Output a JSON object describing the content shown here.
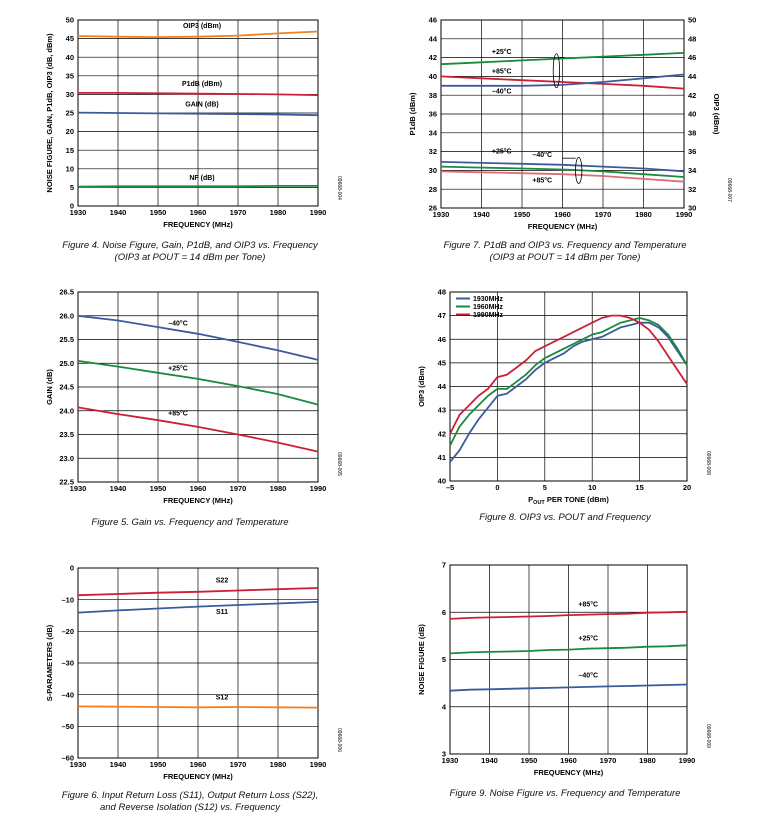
{
  "colors": {
    "blue": "#3a5b9c",
    "green": "#1a8a3c",
    "red": "#cc1f35",
    "orange": "#f47f1f",
    "pink": "#e06a7a"
  },
  "captions": {
    "fig4": [
      "Figure 4. Noise Figure, Gain, P1dB, and OIP3 vs. Frequency",
      "(OIP3 at POUT = 14 dBm per Tone)"
    ],
    "fig7": [
      "Figure 7. P1dB and OIP3 vs. Frequency and Temperature",
      "(OIP3 at POUT = 14 dBm per Tone)"
    ],
    "fig5": [
      "Figure 5. Gain vs. Frequency and Temperature"
    ],
    "fig8": [
      "Figure 8. OIP3 vs. POUT and Frequency"
    ],
    "fig6": [
      "Figure 6. Input Return Loss (S11), Output Return Loss (S22),",
      "and Reverse Isolation (S12) vs. Frequency"
    ],
    "fig9": [
      "Figure 9. Noise Figure vs. Frequency and Temperature"
    ]
  },
  "chart_data": [
    {
      "id": "fig4",
      "type": "line",
      "fig_id": "09668-004",
      "xlabel": "FREQUENCY (MHz)",
      "ylabel": "NOISE FIGURE, GAIN, P1dB, OIP3 (dB, dBm)",
      "xlim": [
        1930,
        1990
      ],
      "ylim": [
        0,
        50
      ],
      "xticks": [
        1930,
        1940,
        1950,
        1960,
        1970,
        1980,
        1990
      ],
      "yticks": [
        0,
        5,
        10,
        15,
        20,
        25,
        30,
        35,
        40,
        45,
        50
      ],
      "grid": true,
      "series": [
        {
          "name": "OIP3 (dBm)",
          "color": "#f47f1f",
          "x": [
            1930,
            1940,
            1950,
            1960,
            1970,
            1980,
            1990
          ],
          "y": [
            45.7,
            45.5,
            45.4,
            45.5,
            45.8,
            46.4,
            46.9
          ]
        },
        {
          "name": "P1dB (dBm)",
          "color": "#cc1f35",
          "x": [
            1930,
            1940,
            1950,
            1960,
            1970,
            1980,
            1990
          ],
          "y": [
            30.4,
            30.4,
            30.3,
            30.2,
            30.1,
            30.0,
            29.8
          ]
        },
        {
          "name": "GAIN (dB)",
          "color": "#3a5b9c",
          "x": [
            1930,
            1940,
            1950,
            1960,
            1970,
            1980,
            1990
          ],
          "y": [
            25.1,
            25.0,
            24.9,
            24.8,
            24.7,
            24.6,
            24.4
          ]
        },
        {
          "name": "NF (dB)",
          "color": "#1a8a3c",
          "x": [
            1930,
            1940,
            1950,
            1960,
            1970,
            1980,
            1990
          ],
          "y": [
            5.2,
            5.3,
            5.3,
            5.3,
            5.3,
            5.4,
            5.4
          ]
        }
      ],
      "labels": [
        {
          "text": "OIP3 (dBm)",
          "x": 1961,
          "y": 47.8
        },
        {
          "text": "P1dB (dBm)",
          "x": 1961,
          "y": 32.2
        },
        {
          "text": "GAIN (dB)",
          "x": 1961,
          "y": 26.7
        },
        {
          "text": "NF (dB)",
          "x": 1961,
          "y": 7.0
        }
      ]
    },
    {
      "id": "fig7",
      "type": "line",
      "fig_id": "09668-007",
      "xlabel": "FREQUENCY (MHz)",
      "ylabel": "P1dB (dBm)",
      "ylabel_right": "OIP3 (dBm)",
      "xlim": [
        1930,
        1990
      ],
      "ylim": [
        26,
        46
      ],
      "ylim_right": [
        30,
        50
      ],
      "xticks": [
        1930,
        1940,
        1950,
        1960,
        1970,
        1980,
        1990
      ],
      "yticks": [
        26,
        28,
        30,
        32,
        34,
        36,
        38,
        40,
        42,
        44,
        46
      ],
      "yticks_right": [
        30,
        32,
        34,
        36,
        38,
        40,
        42,
        44,
        46,
        48,
        50
      ],
      "grid": true,
      "series": [
        {
          "name": "OIP3 +25°C",
          "color": "#1a8a3c",
          "x": [
            1930,
            1940,
            1950,
            1960,
            1970,
            1980,
            1990
          ],
          "y": [
            41.3,
            41.5,
            41.7,
            41.9,
            42.1,
            42.3,
            42.5
          ]
        },
        {
          "name": "OIP3 +85°C",
          "color": "#cc1f35",
          "x": [
            1930,
            1940,
            1950,
            1960,
            1970,
            1980,
            1990
          ],
          "y": [
            40.0,
            39.8,
            39.6,
            39.4,
            39.2,
            39.0,
            38.7
          ]
        },
        {
          "name": "OIP3 −40°C",
          "color": "#3a5b9c",
          "x": [
            1930,
            1940,
            1950,
            1960,
            1970,
            1980,
            1990
          ],
          "y": [
            39.0,
            39.0,
            39.0,
            39.1,
            39.4,
            39.8,
            40.2
          ]
        },
        {
          "name": "P1dB −40°C",
          "color": "#3a5b9c",
          "x": [
            1930,
            1940,
            1950,
            1960,
            1970,
            1980,
            1990
          ],
          "y": [
            30.9,
            30.8,
            30.7,
            30.6,
            30.4,
            30.2,
            29.9
          ]
        },
        {
          "name": "P1dB +25°C",
          "color": "#1a8a3c",
          "x": [
            1930,
            1940,
            1950,
            1960,
            1970,
            1980,
            1990
          ],
          "y": [
            30.4,
            30.3,
            30.2,
            30.1,
            29.9,
            29.6,
            29.3
          ]
        },
        {
          "name": "P1dB +85°C",
          "color": "#e06a7a",
          "x": [
            1930,
            1940,
            1950,
            1960,
            1970,
            1980,
            1990
          ],
          "y": [
            29.9,
            29.8,
            29.7,
            29.6,
            29.4,
            29.1,
            28.8
          ]
        }
      ],
      "labels": [
        {
          "text": "+25°C",
          "x": 1945,
          "y": 42.4
        },
        {
          "text": "+85°C",
          "x": 1945,
          "y": 40.3
        },
        {
          "text": "–40°C",
          "x": 1945,
          "y": 38.2
        },
        {
          "text": "+25°C",
          "x": 1945,
          "y": 31.8
        },
        {
          "text": "–40°C",
          "x": 1955,
          "y": 31.4
        },
        {
          "text": "+85°C",
          "x": 1955,
          "y": 28.7
        }
      ]
    },
    {
      "id": "fig5",
      "type": "line",
      "fig_id": "09668-005",
      "xlabel": "FREQUENCY (MHz)",
      "ylabel": "GAIN (dB)",
      "xlim": [
        1930,
        1990
      ],
      "ylim": [
        22.5,
        26.5
      ],
      "xticks": [
        1930,
        1940,
        1950,
        1960,
        1970,
        1980,
        1990
      ],
      "yticks": [
        22.5,
        23.0,
        23.5,
        24.0,
        24.5,
        25.0,
        25.5,
        26.0,
        26.5
      ],
      "grid": true,
      "series": [
        {
          "name": "–40°C",
          "color": "#3a5b9c",
          "x": [
            1930,
            1940,
            1950,
            1960,
            1970,
            1980,
            1990
          ],
          "y": [
            26.0,
            25.9,
            25.76,
            25.62,
            25.45,
            25.27,
            25.07
          ]
        },
        {
          "name": "+25°C",
          "color": "#1a8a3c",
          "x": [
            1930,
            1940,
            1950,
            1960,
            1970,
            1980,
            1990
          ],
          "y": [
            25.05,
            24.93,
            24.8,
            24.67,
            24.52,
            24.35,
            24.13
          ]
        },
        {
          "name": "+85°C",
          "color": "#cc1f35",
          "x": [
            1930,
            1940,
            1950,
            1960,
            1970,
            1980,
            1990
          ],
          "y": [
            24.07,
            23.93,
            23.8,
            23.66,
            23.5,
            23.33,
            23.14
          ]
        }
      ],
      "labels": [
        {
          "text": "–40°C",
          "x": 1955,
          "y": 25.8
        },
        {
          "text": "+25°C",
          "x": 1955,
          "y": 24.85
        },
        {
          "text": "+85°C",
          "x": 1955,
          "y": 23.9
        }
      ]
    },
    {
      "id": "fig8",
      "type": "line",
      "fig_id": "09668-008",
      "xlabel": "POUT PER TONE (dBm)",
      "ylabel": "OIP3 (dBm)",
      "xlim": [
        -5,
        20
      ],
      "ylim": [
        40,
        48
      ],
      "xticks": [
        -5,
        0,
        5,
        10,
        15,
        20
      ],
      "yticks": [
        40,
        41,
        42,
        43,
        44,
        45,
        46,
        47,
        48
      ],
      "grid": true,
      "legend": "top-left",
      "series": [
        {
          "name": "1930MHz",
          "color": "#3a5b9c",
          "x": [
            -5,
            -4,
            -3,
            -2,
            -1,
            0,
            1,
            2,
            3,
            4,
            5,
            6,
            7,
            8,
            9,
            10,
            11,
            12,
            13,
            14,
            15,
            16,
            17,
            18,
            19,
            20
          ],
          "y": [
            40.8,
            41.3,
            42.0,
            42.6,
            43.1,
            43.6,
            43.7,
            44.0,
            44.3,
            44.7,
            45.0,
            45.2,
            45.4,
            45.7,
            45.9,
            46.0,
            46.1,
            46.3,
            46.5,
            46.6,
            46.7,
            46.7,
            46.5,
            46.1,
            45.5,
            44.9
          ]
        },
        {
          "name": "1960MHz",
          "color": "#1a8a3c",
          "x": [
            -5,
            -4,
            -3,
            -2,
            -1,
            0,
            1,
            2,
            3,
            4,
            5,
            6,
            7,
            8,
            9,
            10,
            11,
            12,
            13,
            14,
            15,
            16,
            17,
            18,
            19,
            20
          ],
          "y": [
            41.5,
            42.3,
            42.8,
            43.2,
            43.6,
            43.9,
            43.9,
            44.2,
            44.5,
            44.9,
            45.2,
            45.4,
            45.6,
            45.8,
            46.0,
            46.2,
            46.3,
            46.5,
            46.7,
            46.8,
            46.9,
            46.8,
            46.6,
            46.2,
            45.6,
            44.9
          ]
        },
        {
          "name": "1990MHz",
          "color": "#cc1f35",
          "x": [
            -5,
            -4,
            -3,
            -2,
            -1,
            0,
            1,
            2,
            3,
            4,
            5,
            6,
            7,
            8,
            9,
            10,
            11,
            12,
            13,
            14,
            15,
            16,
            17,
            18,
            19,
            20
          ],
          "y": [
            42.0,
            42.8,
            43.2,
            43.6,
            43.9,
            44.4,
            44.5,
            44.8,
            45.1,
            45.5,
            45.7,
            45.9,
            46.1,
            46.3,
            46.5,
            46.7,
            46.9,
            47.0,
            47.0,
            46.9,
            46.7,
            46.4,
            45.9,
            45.3,
            44.7,
            44.1
          ]
        }
      ]
    },
    {
      "id": "fig6",
      "type": "line",
      "fig_id": "09668-006",
      "xlabel": "FREQUENCY (MHz)",
      "ylabel": "S-PARAMETERS (dB)",
      "xlim": [
        1930,
        1990
      ],
      "ylim": [
        -60,
        0
      ],
      "xticks": [
        1930,
        1940,
        1950,
        1960,
        1970,
        1980,
        1990
      ],
      "yticks": [
        -60,
        -50,
        -40,
        -30,
        -20,
        -10,
        0
      ],
      "grid": true,
      "series": [
        {
          "name": "S22",
          "color": "#cc1f35",
          "x": [
            1930,
            1940,
            1950,
            1960,
            1970,
            1980,
            1990
          ],
          "y": [
            -8.6,
            -8.2,
            -7.8,
            -7.5,
            -7.1,
            -6.7,
            -6.3
          ]
        },
        {
          "name": "S11",
          "color": "#3a5b9c",
          "x": [
            1930,
            1940,
            1950,
            1960,
            1970,
            1980,
            1990
          ],
          "y": [
            -14.1,
            -13.4,
            -12.8,
            -12.2,
            -11.7,
            -11.2,
            -10.7
          ]
        },
        {
          "name": "S12",
          "color": "#f47f1f",
          "x": [
            1930,
            1940,
            1950,
            1960,
            1970,
            1980,
            1990
          ],
          "y": [
            -43.7,
            -43.8,
            -43.9,
            -44.0,
            -43.9,
            -44.0,
            -44.1
          ]
        }
      ],
      "labels": [
        {
          "text": "S22",
          "x": 1966,
          "y": -4.5
        },
        {
          "text": "S11",
          "x": 1966,
          "y": -14.5
        },
        {
          "text": "S12",
          "x": 1966,
          "y": -41.5
        }
      ]
    },
    {
      "id": "fig9",
      "type": "line",
      "fig_id": "09668-009",
      "xlabel": "FREQUENCY (MHz)",
      "ylabel": "NOISE FIGURE (dB)",
      "xlim": [
        1930,
        1990
      ],
      "ylim": [
        3,
        7
      ],
      "xticks": [
        1930,
        1940,
        1950,
        1960,
        1970,
        1980,
        1990
      ],
      "yticks": [
        3,
        4,
        5,
        6,
        7
      ],
      "grid": true,
      "series": [
        {
          "name": "+85°C",
          "color": "#cc1f35",
          "x": [
            1930,
            1935,
            1940,
            1945,
            1950,
            1955,
            1960,
            1965,
            1970,
            1975,
            1980,
            1985,
            1990
          ],
          "y": [
            5.86,
            5.88,
            5.89,
            5.9,
            5.91,
            5.92,
            5.94,
            5.95,
            5.96,
            5.97,
            5.99,
            6.0,
            6.01
          ]
        },
        {
          "name": "+25°C",
          "color": "#1a8a3c",
          "x": [
            1930,
            1935,
            1940,
            1945,
            1950,
            1955,
            1960,
            1965,
            1970,
            1975,
            1980,
            1985,
            1990
          ],
          "y": [
            5.13,
            5.15,
            5.16,
            5.17,
            5.18,
            5.2,
            5.21,
            5.23,
            5.24,
            5.25,
            5.27,
            5.28,
            5.3
          ]
        },
        {
          "name": "–40°C",
          "color": "#3a5b9c",
          "x": [
            1930,
            1935,
            1940,
            1945,
            1950,
            1955,
            1960,
            1965,
            1970,
            1975,
            1980,
            1985,
            1990
          ],
          "y": [
            4.34,
            4.36,
            4.37,
            4.38,
            4.39,
            4.4,
            4.41,
            4.42,
            4.43,
            4.44,
            4.45,
            4.46,
            4.47
          ]
        }
      ],
      "labels": [
        {
          "text": "+85°C",
          "x": 1965,
          "y": 6.12
        },
        {
          "text": "+25°C",
          "x": 1965,
          "y": 5.4
        },
        {
          "text": "–40°C",
          "x": 1965,
          "y": 4.62
        }
      ]
    }
  ]
}
